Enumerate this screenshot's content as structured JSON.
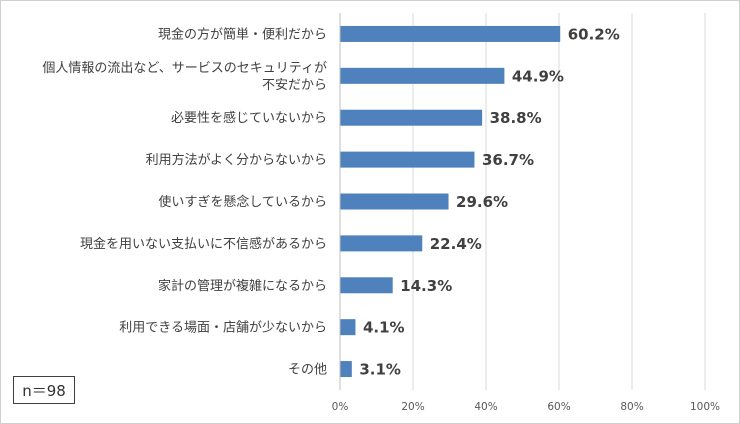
{
  "chart_data": {
    "type": "bar",
    "orientation": "horizontal",
    "categories": [
      [
        "現金の方が簡単・便利だから"
      ],
      [
        "個人情報の流出など、サービスのセキュリティが",
        "不安だから"
      ],
      [
        "必要性を感じていないから"
      ],
      [
        "利用方法がよく分からないから"
      ],
      [
        "使いすぎを懸念しているから"
      ],
      [
        "現金を用いない支払いに不信感があるから"
      ],
      [
        "家計の管理が複雑になるから"
      ],
      [
        "利用できる場面・店舗が少ないから"
      ],
      [
        "その他"
      ]
    ],
    "values": [
      60.2,
      44.9,
      38.8,
      36.7,
      29.6,
      22.4,
      14.3,
      4.1,
      3.1
    ],
    "value_labels": [
      "60.2%",
      "44.9%",
      "38.8%",
      "36.7%",
      "29.6%",
      "22.4%",
      "14.3%",
      "4.1%",
      "3.1%"
    ],
    "xlim": [
      0,
      100
    ],
    "x_ticks": [
      "0%",
      "20%",
      "40%",
      "60%",
      "80%",
      "100%"
    ],
    "bar_color": "#4f81bd",
    "grid": true,
    "title": "",
    "xlabel": "",
    "ylabel": ""
  },
  "note": {
    "sample_size": "n＝98"
  }
}
